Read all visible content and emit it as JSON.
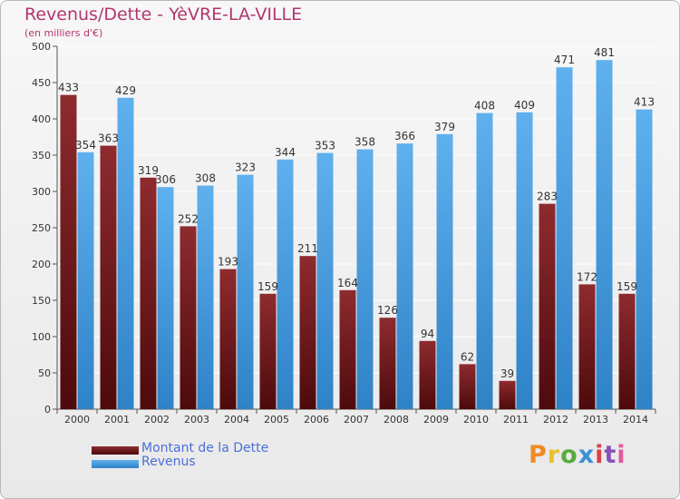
{
  "title": "Revenus/Dette - YèVRE-LA-VILLE",
  "subtitle": "(en milliers d'€)",
  "logo_text": "Proxiti",
  "chart_data": {
    "type": "bar",
    "title": "Revenus/Dette - YèVRE-LA-VILLE",
    "subtitle": "(en milliers d'€)",
    "categories": [
      "2000",
      "2001",
      "2002",
      "2003",
      "2004",
      "2005",
      "2006",
      "2007",
      "2008",
      "2009",
      "2010",
      "2011",
      "2012",
      "2013",
      "2014"
    ],
    "series": [
      {
        "name": "Montant de la Dette",
        "color": "#7a1e22",
        "values": [
          433,
          363,
          319,
          252,
          193,
          159,
          211,
          164,
          126,
          94,
          62,
          39,
          283,
          172,
          159
        ]
      },
      {
        "name": "Revenus",
        "color": "#3f9be0",
        "values": [
          354,
          429,
          306,
          308,
          323,
          344,
          353,
          358,
          366,
          379,
          408,
          409,
          471,
          481,
          413
        ]
      }
    ],
    "yticks": [
      0,
      50,
      100,
      150,
      200,
      250,
      300,
      350,
      400,
      450,
      500
    ],
    "ylim": [
      0,
      500
    ],
    "grid": true,
    "legend_position": "bottom-left"
  }
}
